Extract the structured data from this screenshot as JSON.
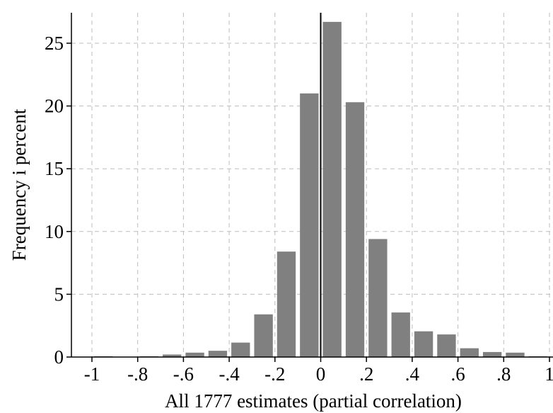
{
  "chart_data": {
    "type": "bar",
    "title": "",
    "xlabel": "All 1777 estimates (partial correlation)",
    "ylabel": "Frequency i percent",
    "xlim": [
      -1,
      1
    ],
    "ylim": [
      0,
      27
    ],
    "bin_width": 0.1,
    "x_ticks": [
      -1,
      -0.8,
      -0.6,
      -0.4,
      -0.2,
      0,
      0.2,
      0.4,
      0.6,
      0.8,
      1
    ],
    "x_tick_labels": [
      "-1",
      "-.8",
      "-.6",
      "-.4",
      "-.2",
      "0",
      ".2",
      ".4",
      ".6",
      ".8",
      "1"
    ],
    "y_ticks": [
      0,
      5,
      10,
      15,
      20,
      25
    ],
    "y_tick_labels": [
      "0",
      "5",
      "10",
      "15",
      "20",
      "25"
    ],
    "grid": true,
    "reference_line_x": 0,
    "bins": [
      {
        "x": -1.0,
        "value": 0.06
      },
      {
        "x": -0.9,
        "value": 0.0
      },
      {
        "x": -0.8,
        "value": 0.06
      },
      {
        "x": -0.7,
        "value": 0.2
      },
      {
        "x": -0.6,
        "value": 0.35
      },
      {
        "x": -0.5,
        "value": 0.5
      },
      {
        "x": -0.4,
        "value": 1.15
      },
      {
        "x": -0.3,
        "value": 3.4
      },
      {
        "x": -0.2,
        "value": 8.4
      },
      {
        "x": -0.1,
        "value": 21.0
      },
      {
        "x": 0.0,
        "value": 26.7
      },
      {
        "x": 0.1,
        "value": 20.3
      },
      {
        "x": 0.2,
        "value": 9.4
      },
      {
        "x": 0.3,
        "value": 3.55
      },
      {
        "x": 0.4,
        "value": 2.05
      },
      {
        "x": 0.5,
        "value": 1.8
      },
      {
        "x": 0.6,
        "value": 0.7
      },
      {
        "x": 0.7,
        "value": 0.4
      },
      {
        "x": 0.8,
        "value": 0.35
      },
      {
        "x": 0.9,
        "value": 0.06
      }
    ]
  }
}
